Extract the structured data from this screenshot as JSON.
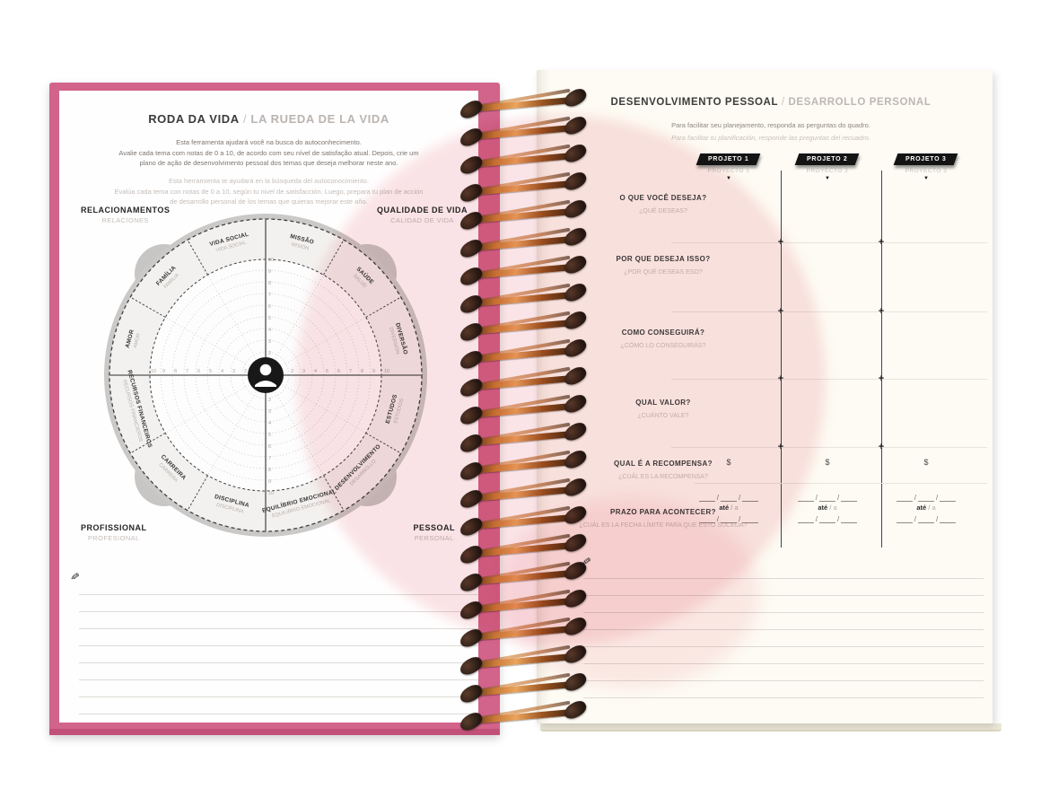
{
  "left_page": {
    "title": {
      "pt": "RODA DA VIDA",
      "divider": " / ",
      "es": "LA RUEDA DE LA VIDA"
    },
    "intro_pt": [
      "Esta ferramenta ajudará você na busca do autoconhecimento.",
      "Avalie cada tema com notas de 0 a 10, de acordo com seu nível de satisfação atual. Depois, crie um",
      "plano de ação de desenvolvimento pessoal dos temas que deseja melhorar neste ano."
    ],
    "intro_es": [
      "Esta herramienta te ayudará en la búsqueda del autoconocimiento.",
      "Evalúa cada tema con notas de 0 a 10, según tu nivel de satisfacción. Luego, prepara tu plan de acción",
      "de desarrollo personal de los temas que quieras mejorar este año."
    ],
    "corners": {
      "top_left": {
        "pt": "RELACIONAMENTOS",
        "es": "RELACIONES"
      },
      "top_right": {
        "pt": "QUALIDADE DE VIDA",
        "es": "CALIDAD DE VIDA"
      },
      "bottom_left": {
        "pt": "PROFISSIONAL",
        "es": "PROFESIONAL"
      },
      "bottom_right": {
        "pt": "PESSOAL",
        "es": "PERSONAL"
      }
    },
    "wheel": {
      "center_icon": "person",
      "scale": [
        "1",
        "2",
        "3",
        "4",
        "5",
        "6",
        "7",
        "8",
        "9",
        "10"
      ],
      "segments": [
        {
          "pt": "MISSÃO",
          "es": "MISIÓN"
        },
        {
          "pt": "SAÚDE",
          "es": "SALUD"
        },
        {
          "pt": "DIVERSÃO",
          "es": "DIVERSIÓN"
        },
        {
          "pt": "ESTUDOS",
          "es": "ESTUDIOS"
        },
        {
          "pt": "DESENVOLVIMENTO",
          "es": "DESARROLLO"
        },
        {
          "pt": "EQUILÍBRIO EMOCIONAL",
          "es": "EQUILIBRIO EMOCIONAL"
        },
        {
          "pt": "DISCIPLINA",
          "es": "DISCIPLINA"
        },
        {
          "pt": "CARREIRA",
          "es": "CARRERA"
        },
        {
          "pt": "RECURSOS FINANCEIROS",
          "es": "RECURSOS FINANCIEROS"
        },
        {
          "pt": "AMOR",
          "es": "AMOR"
        },
        {
          "pt": "FAMÍLIA",
          "es": "FAMILIA"
        },
        {
          "pt": "VIDA SOCIAL",
          "es": "VIDA SOCIAL"
        }
      ]
    },
    "pencil_icon": "✎"
  },
  "right_page": {
    "title": {
      "pt": "DESENVOLVIMENTO PESSOAL",
      "divider": " / ",
      "es": "DESARROLLO PERSONAL"
    },
    "subtitle_pt": "Para facilitar seu planejamento, responda as perguntas do quadro.",
    "subtitle_es": "Para facilitar tu planificación, responde las preguntas del recuadro.",
    "arrow": "▼",
    "projects": [
      {
        "pt": "PROJETO 1",
        "es": "PROYECTO 1"
      },
      {
        "pt": "PROJETO 2",
        "es": "PROYECTO 2"
      },
      {
        "pt": "PROJETO 3",
        "es": "PROYECTO 3"
      }
    ],
    "questions": [
      {
        "pt": "O QUE VOCÊ DESEJA?",
        "es": "¿QUÉ DESEAS?"
      },
      {
        "pt": "POR QUE DESEJA ISSO?",
        "es": "¿POR QUÉ DESEAS ESO?"
      },
      {
        "pt": "COMO CONSEGUIRÁ?",
        "es": "¿CÓMO LO CONSEGUIRÁS?"
      },
      {
        "pt": "QUAL VALOR?",
        "es": "¿CUÁNTO VALE?"
      },
      {
        "pt": "QUAL É A RECOMPENSA?",
        "es": "¿CUÁL ES LA RECOMPENSA?"
      },
      {
        "pt": "PRAZO PARA ACONTECER?",
        "es": "¿CUÁL ES LA FECHA LÍMITE PARA QUE ESTO SUCEDA?"
      }
    ],
    "reward_symbol": "$",
    "date_range": {
      "until_pt": "até",
      "sep": " / ",
      "until_es": "a",
      "slash": "/"
    },
    "pencil_icon": "✎"
  }
}
